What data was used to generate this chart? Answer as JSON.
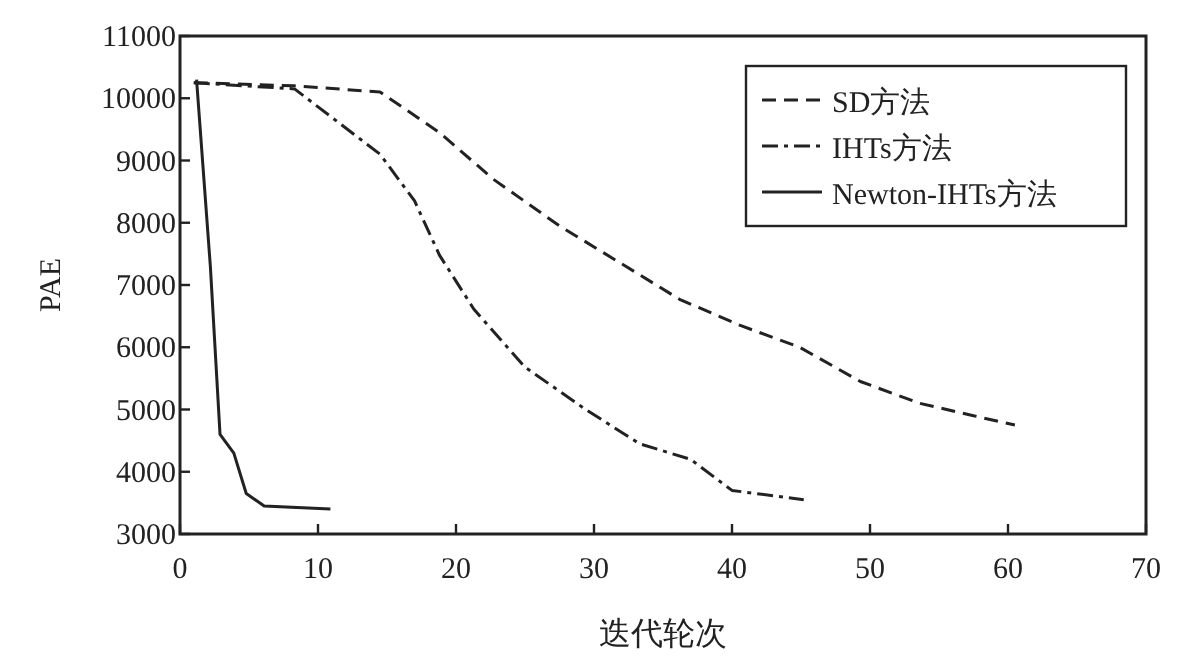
{
  "chart_data": {
    "type": "line",
    "xlabel": "迭代轮次",
    "ylabel": "PAE",
    "xlim": [
      0,
      70
    ],
    "ylim": [
      3000,
      11000
    ],
    "xticks": [
      0,
      10,
      20,
      30,
      40,
      50,
      60,
      70
    ],
    "yticks": [
      3000,
      4000,
      5000,
      6000,
      7000,
      8000,
      9000,
      10000,
      11000
    ],
    "legend": "top right",
    "grid": false,
    "series": [
      {
        "name": "SD方法",
        "color": "#222222",
        "line_style": "dashed",
        "x": [
          1,
          8.3,
          14.5,
          18.8,
          22.7,
          27.5,
          32.3,
          36.2,
          40.6,
          44.9,
          49.3,
          53.6,
          57.5,
          60.5
        ],
        "values": [
          10250,
          10200,
          10100,
          9450,
          8700,
          7950,
          7300,
          6770,
          6350,
          6000,
          5450,
          5100,
          4900,
          4750
        ]
      },
      {
        "name": "IHTs方法",
        "color": "#222222",
        "line_style": "dashdot",
        "x": [
          1,
          8.3,
          14.5,
          17,
          18.8,
          21.3,
          25,
          29.4,
          33.3,
          37,
          40,
          45.2
        ],
        "values": [
          10250,
          10150,
          9100,
          8350,
          7480,
          6610,
          5680,
          5000,
          4450,
          4200,
          3700,
          3550
        ]
      },
      {
        "name": "Newton-IHTs方法",
        "color": "#222222",
        "line_style": "solid",
        "x": [
          1.2,
          2.2,
          2.9,
          3.9,
          4.8,
          6.1,
          10.9
        ],
        "values": [
          10300,
          7300,
          4600,
          4300,
          3650,
          3450,
          3400
        ]
      }
    ]
  }
}
